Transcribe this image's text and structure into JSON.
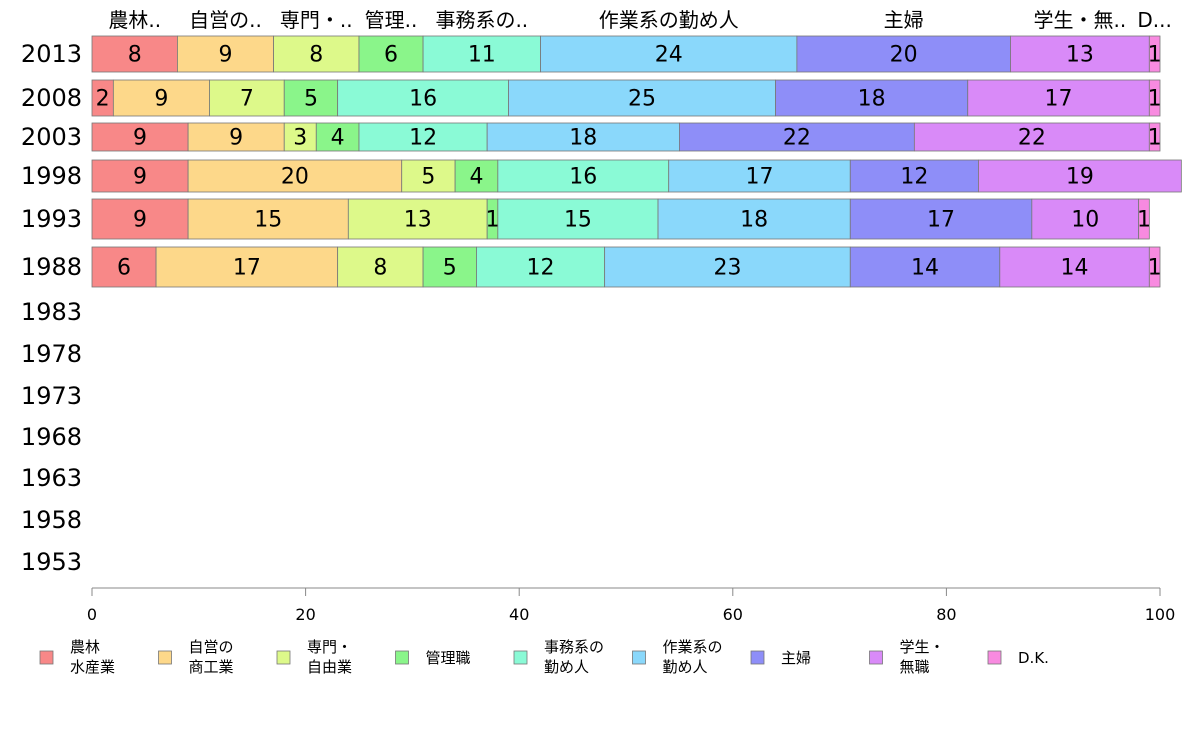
{
  "chart_data": {
    "type": "bar",
    "orientation": "horizontal",
    "stacked": true,
    "xlim": [
      0,
      100
    ],
    "x_ticks": [
      "0",
      "20",
      "40",
      "60",
      "80",
      "100"
    ],
    "categories": [
      "2013",
      "2008",
      "2003",
      "1998",
      "1993",
      "1988",
      "1983",
      "1978",
      "1973",
      "1968",
      "1963",
      "1958",
      "1953"
    ],
    "column_headers": [
      "農林..",
      "自営の..",
      "専門・..",
      "管理..",
      "事務系の..",
      "作業系の勤め人",
      "主婦",
      "学生・無..",
      "D..."
    ],
    "series": [
      {
        "name": "農林水産業",
        "legend": [
          "農林",
          "水産業"
        ],
        "color": "#f88888",
        "values": [
          8,
          2,
          9,
          9,
          9,
          6,
          null,
          null,
          null,
          null,
          null,
          null,
          null
        ],
        "labels": [
          "8",
          "2",
          "9",
          "9",
          "9",
          "6"
        ]
      },
      {
        "name": "自営の商工業",
        "legend": [
          "自営の",
          "商工業"
        ],
        "color": "#fdd88a",
        "values": [
          9,
          9,
          9,
          20,
          15,
          17,
          null,
          null,
          null,
          null,
          null,
          null,
          null
        ],
        "labels": [
          "9",
          "9",
          "9",
          "20",
          "15",
          "17"
        ]
      },
      {
        "name": "専門・自由業",
        "legend": [
          "専門・",
          "自由業"
        ],
        "color": "#ddf98a",
        "values": [
          8,
          7,
          3,
          5,
          13,
          8,
          null,
          null,
          null,
          null,
          null,
          null,
          null
        ],
        "labels": [
          "8",
          "7",
          "3",
          "5",
          "13",
          "8"
        ]
      },
      {
        "name": "管理職",
        "legend": [
          "管理職"
        ],
        "color": "#8af58a",
        "values": [
          6,
          5,
          4,
          4,
          1,
          5,
          null,
          null,
          null,
          null,
          null,
          null,
          null
        ],
        "labels": [
          "6",
          "5",
          "4",
          "4",
          "1",
          "5"
        ]
      },
      {
        "name": "事務系の勤め人",
        "legend": [
          "事務系の",
          "勤め人"
        ],
        "color": "#8afad6",
        "values": [
          11,
          16,
          12,
          16,
          15,
          12,
          null,
          null,
          null,
          null,
          null,
          null,
          null
        ],
        "labels": [
          "11",
          "16",
          "12",
          "16",
          "15",
          "12"
        ]
      },
      {
        "name": "作業系の勤め人",
        "legend": [
          "作業系の",
          "勤め人"
        ],
        "color": "#8ad8fb",
        "values": [
          24,
          25,
          18,
          17,
          18,
          23,
          null,
          null,
          null,
          null,
          null,
          null,
          null
        ],
        "labels": [
          "24",
          "25",
          "18",
          "17",
          "18",
          "23"
        ]
      },
      {
        "name": "主婦",
        "legend": [
          "主婦"
        ],
        "color": "#8e8ef8",
        "values": [
          20,
          18,
          22,
          12,
          17,
          14,
          null,
          null,
          null,
          null,
          null,
          null,
          null
        ],
        "labels": [
          "20",
          "18",
          "22",
          "12",
          "17",
          "14"
        ]
      },
      {
        "name": "学生・無職",
        "legend": [
          "学生・",
          "無職"
        ],
        "color": "#d98af8",
        "values": [
          13,
          17,
          22,
          19,
          10,
          14,
          null,
          null,
          null,
          null,
          null,
          null,
          null
        ],
        "labels": [
          "13",
          "17",
          "22",
          "19",
          "10",
          "14"
        ]
      },
      {
        "name": "D.K.",
        "legend": [
          "D.K."
        ],
        "color": "#f88ae0",
        "values": [
          1,
          1,
          1,
          0,
          1,
          1,
          null,
          null,
          null,
          null,
          null,
          null,
          null
        ],
        "labels": [
          "1",
          "1",
          "1",
          "",
          "1",
          "1"
        ]
      }
    ],
    "grid": false,
    "legend_position": "bottom"
  }
}
